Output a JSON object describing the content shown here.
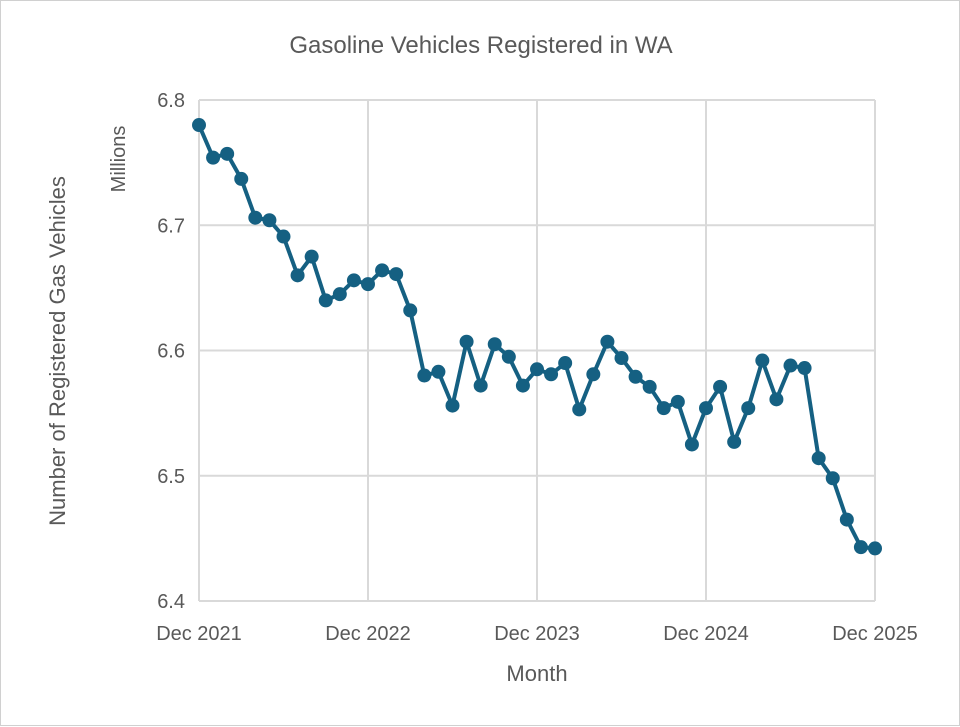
{
  "chart_data": {
    "type": "line",
    "title": "Gasoline Vehicles Registered in WA",
    "xlabel": "Month",
    "ylabel": "Number of Registered Gas Vehicles",
    "yunit": "Millions",
    "ylim": [
      6.4,
      6.8
    ],
    "yticks": [
      "6.4",
      "6.5",
      "6.6",
      "6.7",
      "6.8"
    ],
    "xticks": [
      "Dec 2021",
      "Dec 2022",
      "Dec 2023",
      "Dec 2024",
      "Dec 2025"
    ],
    "grid": true,
    "color": "#156082",
    "values": [
      6.78,
      6.754,
      6.757,
      6.737,
      6.706,
      6.704,
      6.691,
      6.66,
      6.675,
      6.64,
      6.645,
      6.656,
      6.653,
      6.664,
      6.661,
      6.632,
      6.58,
      6.583,
      6.556,
      6.607,
      6.572,
      6.605,
      6.595,
      6.572,
      6.585,
      6.581,
      6.59,
      6.553,
      6.581,
      6.607,
      6.594,
      6.579,
      6.571,
      6.554,
      6.559,
      6.525,
      6.554,
      6.571,
      6.527,
      6.554,
      6.592,
      6.561,
      6.588,
      6.586,
      6.514,
      6.498,
      6.465,
      6.443,
      6.442
    ]
  }
}
